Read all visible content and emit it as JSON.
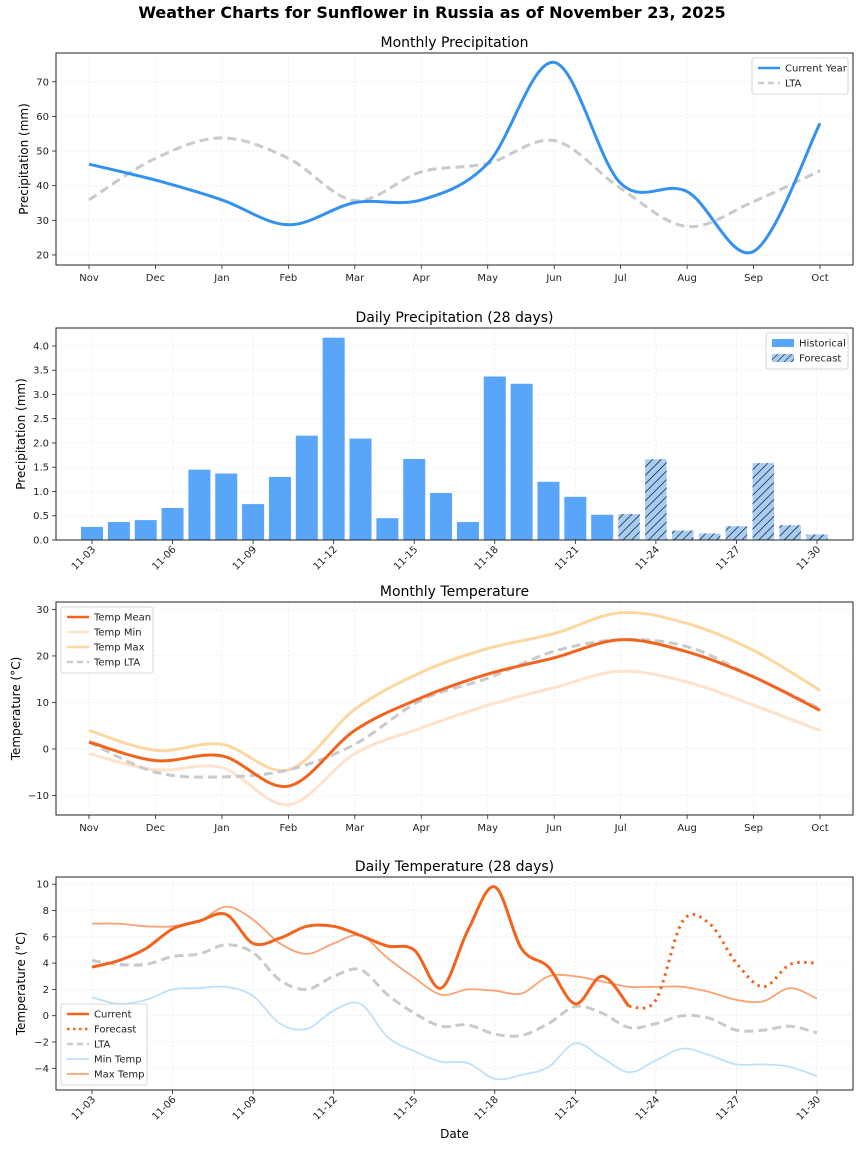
{
  "suptitle": "Weather Charts for Sunflower in Russia as of November 23, 2025",
  "colors": {
    "precip_current": "#3391f0",
    "lta": "#c8cacc",
    "bar_historical": "#58a5fa",
    "bar_forecast": "#a8cdf5",
    "temp_mean": "#f2641e",
    "temp_min": "#ffe2cc",
    "temp_max": "#fdd7a0",
    "daily_current": "#f2641e",
    "daily_min": "#bfe0fb",
    "daily_max": "#f9a274"
  },
  "chart_data": [
    {
      "id": "monthly-precip",
      "type": "line",
      "title": "Monthly Precipitation",
      "xlabel": "",
      "ylabel": "Precipitation (mm)",
      "categories": [
        "Nov",
        "Dec",
        "Jan",
        "Feb",
        "Mar",
        "Apr",
        "May",
        "Jun",
        "Jul",
        "Aug",
        "Sep",
        "Oct"
      ],
      "yticks": [
        20,
        30,
        40,
        50,
        60,
        70
      ],
      "ylim": [
        17.1,
        78.3
      ],
      "grid": true,
      "legend_position": "top-right",
      "series": [
        {
          "name": "Current Year",
          "style": "solid",
          "color_key": "precip_current",
          "values": [
            46.2,
            41.6,
            35.9,
            28.7,
            35.1,
            35.9,
            46.4,
            75.6,
            40.7,
            38.3,
            21.0,
            58.0
          ]
        },
        {
          "name": "LTA",
          "style": "dashed",
          "color_key": "lta",
          "values": [
            35.9,
            47.9,
            53.8,
            47.9,
            35.7,
            44.0,
            46.4,
            53.0,
            39.2,
            28.2,
            35.4,
            44.3
          ]
        }
      ]
    },
    {
      "id": "daily-precip",
      "type": "bar",
      "title": "Daily Precipitation (28 days)",
      "xlabel": "",
      "ylabel": "Precipitation (mm)",
      "categories": [
        "11-03",
        "11-04",
        "11-05",
        "11-06",
        "11-07",
        "11-08",
        "11-09",
        "11-10",
        "11-11",
        "11-12",
        "11-13",
        "11-14",
        "11-15",
        "11-16",
        "11-17",
        "11-18",
        "11-19",
        "11-20",
        "11-21",
        "11-22",
        "11-23",
        "11-24",
        "11-25",
        "11-26",
        "11-27",
        "11-28",
        "11-29",
        "11-30"
      ],
      "xtick_labels": [
        "11-03",
        "11-06",
        "11-09",
        "11-12",
        "11-15",
        "11-18",
        "11-21",
        "11-24",
        "11-27",
        "11-30"
      ],
      "yticks": [
        0.0,
        0.5,
        1.0,
        1.5,
        2.0,
        2.5,
        3.0,
        3.5,
        4.0
      ],
      "ylim": [
        0,
        4.37
      ],
      "grid": true,
      "legend_position": "top-right",
      "series": [
        {
          "name": "Historical",
          "color_key": "bar_historical",
          "values": [
            0.27,
            0.37,
            0.41,
            0.66,
            1.45,
            1.37,
            0.74,
            1.3,
            2.15,
            4.17,
            2.09,
            0.45,
            1.67,
            0.97,
            0.37,
            3.37,
            3.22,
            1.2,
            0.89,
            0.52,
            null,
            null,
            null,
            null,
            null,
            null,
            null,
            null
          ]
        },
        {
          "name": "Forecast",
          "color_key": "bar_forecast",
          "hatch": "///",
          "values": [
            null,
            null,
            null,
            null,
            null,
            null,
            null,
            null,
            null,
            null,
            null,
            null,
            null,
            null,
            null,
            null,
            null,
            null,
            null,
            null,
            0.54,
            1.67,
            0.2,
            0.14,
            0.29,
            1.59,
            0.31,
            0.12
          ]
        }
      ]
    },
    {
      "id": "monthly-temp",
      "type": "line",
      "title": "Monthly Temperature",
      "xlabel": "",
      "ylabel": "Temperature (°C)",
      "categories": [
        "Nov",
        "Dec",
        "Jan",
        "Feb",
        "Mar",
        "Apr",
        "May",
        "Jun",
        "Jul",
        "Aug",
        "Sep",
        "Oct"
      ],
      "yticks": [
        -10,
        0,
        10,
        20,
        30
      ],
      "ylim": [
        -14.2,
        31.6
      ],
      "grid": true,
      "legend_position": "top-left",
      "series": [
        {
          "name": "Temp Mean",
          "style": "solid",
          "color_key": "temp_mean",
          "values": [
            1.5,
            -2.5,
            -1.5,
            -8.0,
            4.0,
            11.0,
            16.1,
            19.6,
            23.5,
            20.9,
            15.5,
            8.3
          ]
        },
        {
          "name": "Temp Min",
          "style": "solid",
          "color_key": "temp_min",
          "values": [
            -1.0,
            -4.5,
            -4.0,
            -12.0,
            -1.0,
            4.5,
            9.4,
            13.2,
            16.7,
            14.4,
            9.4,
            4.0
          ]
        },
        {
          "name": "Temp Max",
          "style": "solid",
          "color_key": "temp_max",
          "values": [
            4.0,
            -0.3,
            1.0,
            -4.5,
            8.5,
            16.5,
            21.6,
            24.8,
            29.3,
            27.0,
            21.2,
            12.6
          ]
        },
        {
          "name": "Temp LTA",
          "style": "dashed",
          "color_key": "lta",
          "values": [
            1.5,
            -5.0,
            -6.0,
            -4.5,
            1.0,
            10.5,
            15.2,
            21.0,
            23.5,
            22.0,
            15.5,
            8.7
          ]
        }
      ]
    },
    {
      "id": "daily-temp",
      "type": "line",
      "title": "Daily Temperature (28 days)",
      "xlabel": "Date",
      "ylabel": "Temperature (°C)",
      "categories": [
        "11-03",
        "11-04",
        "11-05",
        "11-06",
        "11-07",
        "11-08",
        "11-09",
        "11-10",
        "11-11",
        "11-12",
        "11-13",
        "11-14",
        "11-15",
        "11-16",
        "11-17",
        "11-18",
        "11-19",
        "11-20",
        "11-21",
        "11-22",
        "11-23",
        "11-24",
        "11-25",
        "11-26",
        "11-27",
        "11-28",
        "11-29",
        "11-30"
      ],
      "xtick_labels": [
        "11-03",
        "11-06",
        "11-09",
        "11-12",
        "11-15",
        "11-18",
        "11-21",
        "11-24",
        "11-27",
        "11-30"
      ],
      "yticks": [
        -4,
        -2,
        0,
        2,
        4,
        6,
        8,
        10
      ],
      "ylim": [
        -5.65,
        10.55
      ],
      "grid": true,
      "legend_position": "bottom-left",
      "series": [
        {
          "name": "Current",
          "style": "solid",
          "color_key": "daily_current",
          "values": [
            3.7,
            4.2,
            5.1,
            6.6,
            7.2,
            7.7,
            5.5,
            5.9,
            6.8,
            6.8,
            6.1,
            5.3,
            5.0,
            2.1,
            6.5,
            9.8,
            5.1,
            3.7,
            0.9,
            3.0,
            0.7,
            null,
            null,
            null,
            null,
            null,
            null,
            null
          ]
        },
        {
          "name": "Forecast",
          "style": "dotted",
          "color_key": "daily_current",
          "values": [
            null,
            null,
            null,
            null,
            null,
            null,
            null,
            null,
            null,
            null,
            null,
            null,
            null,
            null,
            null,
            null,
            null,
            null,
            null,
            null,
            0.7,
            1.2,
            7.2,
            7.0,
            4.0,
            2.2,
            3.9,
            4.0
          ]
        },
        {
          "name": "LTA",
          "style": "dashed",
          "color_key": "lta",
          "values": [
            4.2,
            3.9,
            3.9,
            4.5,
            4.7,
            5.4,
            4.8,
            2.7,
            2.0,
            3.0,
            3.5,
            1.6,
            0.2,
            -0.8,
            -0.7,
            -1.4,
            -1.5,
            -0.6,
            0.7,
            0.2,
            -0.9,
            -0.6,
            0.0,
            -0.2,
            -1.1,
            -1.1,
            -0.8,
            -1.3
          ]
        },
        {
          "name": "Min Temp",
          "style": "solid",
          "color_key": "daily_min",
          "values": [
            1.4,
            0.9,
            1.2,
            2.0,
            2.1,
            2.2,
            1.5,
            -0.6,
            -1.0,
            0.4,
            0.9,
            -1.6,
            -2.7,
            -3.5,
            -3.6,
            -4.8,
            -4.5,
            -3.9,
            -2.1,
            -3.2,
            -4.3,
            -3.4,
            -2.5,
            -3.0,
            -3.7,
            -3.7,
            -3.9,
            -4.6
          ]
        },
        {
          "name": "Max Temp",
          "style": "solid",
          "color_key": "daily_max",
          "values": [
            7.0,
            7.0,
            6.8,
            6.8,
            7.2,
            8.3,
            7.3,
            5.5,
            4.7,
            5.5,
            6.1,
            4.4,
            2.9,
            1.6,
            2.0,
            1.9,
            1.7,
            3.0,
            3.0,
            2.6,
            2.2,
            2.2,
            2.2,
            1.8,
            1.2,
            1.1,
            2.1,
            1.3
          ]
        }
      ]
    }
  ]
}
